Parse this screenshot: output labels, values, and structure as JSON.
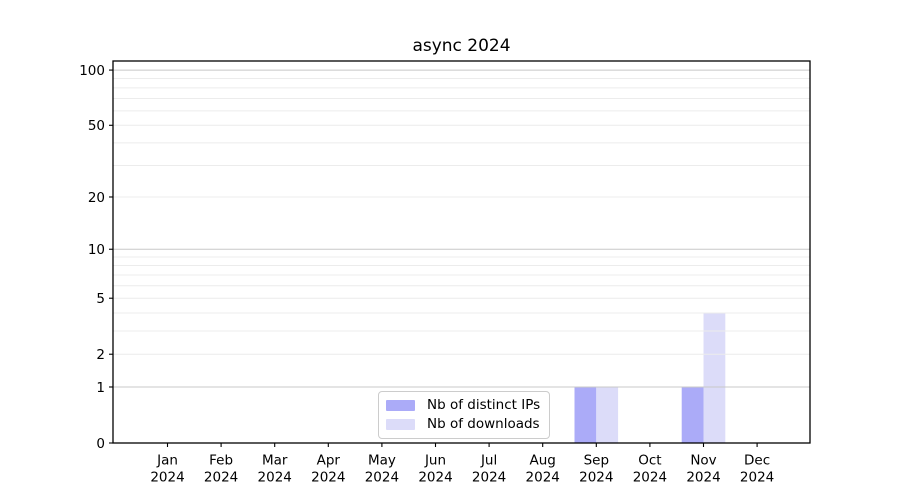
{
  "chart_data": {
    "type": "bar",
    "title": "async 2024",
    "categories": [
      "Jan 2024",
      "Feb 2024",
      "Mar 2024",
      "Apr 2024",
      "May 2024",
      "Jun 2024",
      "Jul 2024",
      "Aug 2024",
      "Sep 2024",
      "Oct 2024",
      "Nov 2024",
      "Dec 2024"
    ],
    "x_tick_lines": [
      [
        "Jan",
        "2024"
      ],
      [
        "Feb",
        "2024"
      ],
      [
        "Mar",
        "2024"
      ],
      [
        "Apr",
        "2024"
      ],
      [
        "May",
        "2024"
      ],
      [
        "Jun",
        "2024"
      ],
      [
        "Jul",
        "2024"
      ],
      [
        "Aug",
        "2024"
      ],
      [
        "Sep",
        "2024"
      ],
      [
        "Oct",
        "2024"
      ],
      [
        "Nov",
        "2024"
      ],
      [
        "Dec",
        "2024"
      ]
    ],
    "series": [
      {
        "name": "Nb of distinct IPs",
        "color": "#ababf8",
        "values": [
          0,
          0,
          0,
          0,
          0,
          0,
          0,
          0,
          1,
          0,
          1,
          0
        ]
      },
      {
        "name": "Nb of downloads",
        "color": "#dcdcf9",
        "values": [
          0,
          0,
          0,
          0,
          0,
          0,
          0,
          0,
          1,
          0,
          4,
          0
        ]
      }
    ],
    "xlabel": "",
    "ylabel": "",
    "yscale": "log1p",
    "ylim": [
      0,
      112
    ],
    "ytick_values": [
      0,
      1,
      2,
      5,
      10,
      20,
      50,
      100
    ],
    "ytick_labels": [
      "0",
      "1",
      "2",
      "5",
      "10",
      "20",
      "50",
      "100"
    ],
    "major_grid_values": [
      1,
      10,
      100
    ],
    "minor_grid_values": [
      2,
      3,
      4,
      5,
      6,
      7,
      8,
      9,
      20,
      30,
      40,
      50,
      60,
      70,
      80,
      90
    ],
    "grid": true,
    "legend_position": "lower center",
    "axis_color": "#000000",
    "grid_major_color": "#c8c8c8",
    "grid_minor_color": "#ececec",
    "background_color": "#ffffff"
  }
}
